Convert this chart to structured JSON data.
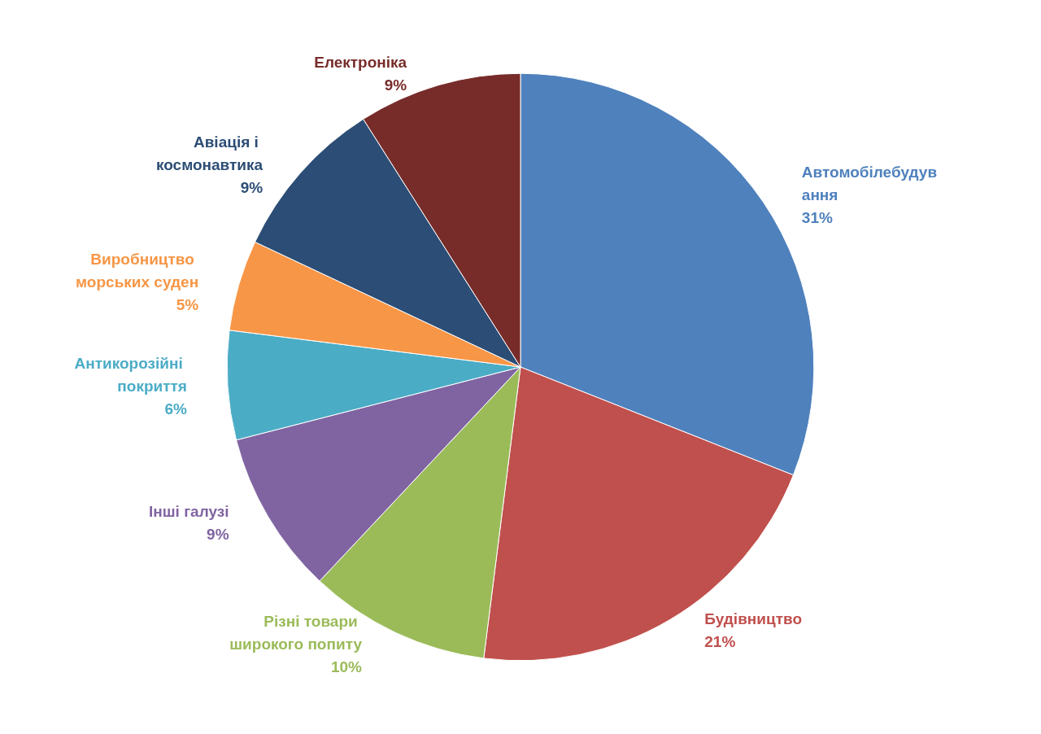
{
  "chart_data": {
    "type": "pie",
    "categories": [
      "Автомобілебудування",
      "Будівництво",
      "Різні товари широкого попиту",
      "Інші галузі",
      "Антикорозійні покриття",
      "Виробництво морських суден",
      "Авіація і космонавтика",
      "Електроніка"
    ],
    "values": [
      31,
      21,
      10,
      9,
      6,
      5,
      9,
      9
    ],
    "colors": [
      "#4f81bd",
      "#c0504d",
      "#9bbb59",
      "#8064a2",
      "#4bacc6",
      "#f79646",
      "#2c4d75",
      "#772c2a"
    ],
    "value_labels": [
      "31%",
      "21%",
      "10%",
      "9%",
      "6%",
      "5%",
      "9%",
      "9%"
    ]
  }
}
